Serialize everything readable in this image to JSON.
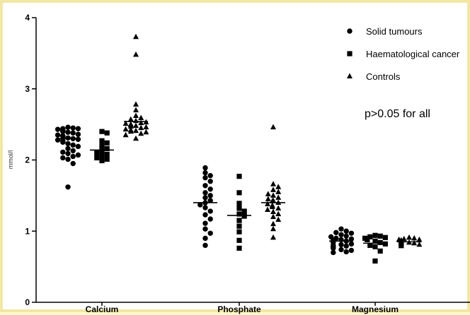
{
  "chart_data": {
    "type": "scatter",
    "title": "",
    "xlabel": "",
    "ylabel": "mmol/l",
    "ylim": [
      0,
      4
    ],
    "yticks": [
      "0",
      "1",
      "2",
      "3",
      "4"
    ],
    "categories": [
      "Calcium",
      "Phosphate",
      "Magnesium"
    ],
    "annotation": "p>0.05 for all",
    "legend_position": "top-right",
    "grid": false,
    "series": [
      {
        "name": "Solid tumours",
        "marker": "circle",
        "means": [
          2.3,
          1.4,
          0.86
        ],
        "values": [
          [
            2.46,
            2.45,
            2.44,
            2.44,
            2.43,
            2.42,
            2.41,
            2.4,
            2.39,
            2.38,
            2.36,
            2.35,
            2.34,
            2.33,
            2.31,
            2.3,
            2.29,
            2.28,
            2.27,
            2.25,
            2.23,
            2.21,
            2.19,
            2.16,
            2.13,
            2.11,
            2.09,
            2.07,
            2.05,
            2.03,
            2.01,
            1.95,
            1.62
          ],
          [
            1.89,
            1.82,
            1.78,
            1.75,
            1.7,
            1.64,
            1.59,
            1.54,
            1.5,
            1.47,
            1.43,
            1.4,
            1.37,
            1.33,
            1.28,
            1.23,
            1.17,
            1.11,
            1.03,
            0.97,
            0.9,
            0.8
          ],
          [
            1.03,
            1.0,
            0.98,
            0.97,
            0.95,
            0.93,
            0.92,
            0.9,
            0.89,
            0.88,
            0.87,
            0.86,
            0.85,
            0.84,
            0.82,
            0.81,
            0.8,
            0.79,
            0.78,
            0.77,
            0.76,
            0.74,
            0.73,
            0.71,
            0.7
          ]
        ]
      },
      {
        "name": "Haematological cancer",
        "marker": "square",
        "means": [
          2.14,
          1.22,
          0.83
        ],
        "values": [
          [
            2.4,
            2.38,
            2.27,
            2.24,
            2.2,
            2.16,
            2.13,
            2.1,
            2.08,
            2.06,
            2.03,
            2.01,
            1.99
          ],
          [
            1.77,
            1.54,
            1.39,
            1.32,
            1.28,
            1.24,
            1.21,
            1.15,
            1.07,
            0.99,
            0.87,
            0.76
          ],
          [
            0.94,
            0.93,
            0.92,
            0.91,
            0.9,
            0.89,
            0.88,
            0.86,
            0.84,
            0.82,
            0.8,
            0.78,
            0.72,
            0.58
          ]
        ]
      },
      {
        "name": "Controls",
        "marker": "triangle",
        "means": [
          2.54,
          1.4,
          0.85
        ],
        "values": [
          [
            3.73,
            3.48,
            2.78,
            2.7,
            2.62,
            2.59,
            2.57,
            2.55,
            2.53,
            2.52,
            2.51,
            2.5,
            2.49,
            2.48,
            2.47,
            2.46,
            2.45,
            2.43,
            2.42,
            2.41,
            2.4,
            2.39,
            2.37,
            2.35,
            2.3
          ],
          [
            2.46,
            1.66,
            1.62,
            1.58,
            1.55,
            1.52,
            1.5,
            1.47,
            1.45,
            1.43,
            1.42,
            1.4,
            1.38,
            1.36,
            1.34,
            1.32,
            1.3,
            1.27,
            1.24,
            1.2,
            1.16,
            1.1,
            1.03,
            0.91
          ],
          [
            0.91,
            0.9,
            0.89,
            0.88,
            0.88,
            0.87,
            0.87,
            0.86,
            0.86,
            0.85,
            0.85,
            0.84,
            0.84,
            0.83,
            0.83,
            0.82,
            0.82,
            0.81,
            0.8,
            0.8,
            0.79
          ]
        ]
      }
    ]
  }
}
